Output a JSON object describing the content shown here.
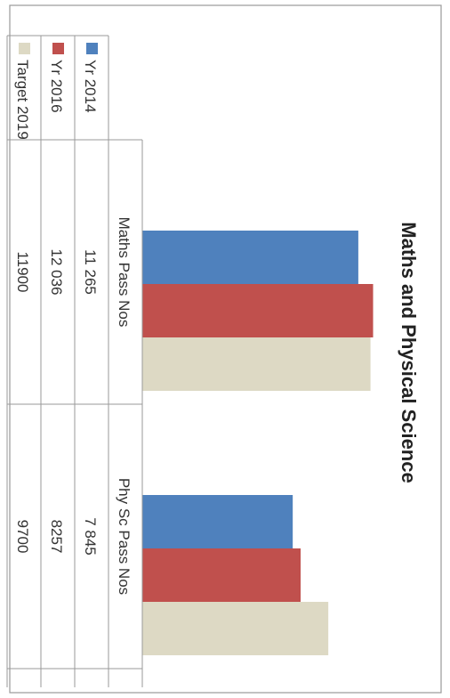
{
  "chart_data": {
    "type": "bar",
    "title": "Maths and Physical Science",
    "categories": [
      "Maths Pass Nos",
      "Phy Sc Pass Nos"
    ],
    "series": [
      {
        "name": "Yr 2014",
        "values": [
          11265,
          7845
        ],
        "labels": [
          "11 265",
          "7 845"
        ],
        "color": "#4f81bd"
      },
      {
        "name": "Yr 2016",
        "values": [
          12036,
          8257
        ],
        "labels": [
          "12 036",
          "8257"
        ],
        "color": "#c0504d"
      },
      {
        "name": "Target 2019",
        "values": [
          11900,
          9700
        ],
        "labels": [
          "11900",
          "9700"
        ],
        "color": "#ddd9c4"
      }
    ],
    "ylim": [
      0,
      12800
    ],
    "grid": false,
    "legend": "data-table"
  }
}
